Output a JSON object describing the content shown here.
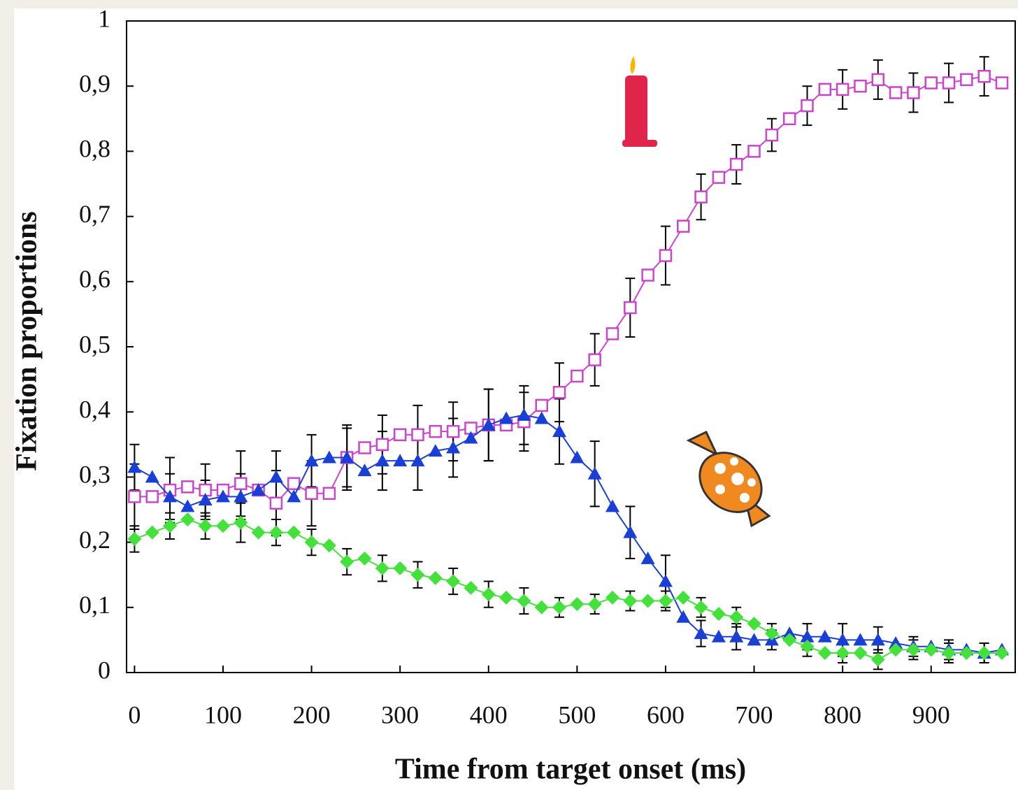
{
  "chart_data": {
    "type": "line",
    "x_label": "Time from target onset (ms)",
    "y_label": "Fixation proportions",
    "x": [
      0,
      20,
      40,
      60,
      80,
      100,
      120,
      140,
      160,
      180,
      200,
      220,
      240,
      260,
      280,
      300,
      320,
      340,
      360,
      380,
      400,
      420,
      440,
      460,
      480,
      500,
      520,
      540,
      560,
      580,
      600,
      620,
      640,
      660,
      680,
      700,
      720,
      740,
      760,
      780,
      800,
      820,
      840,
      860,
      880,
      900,
      920,
      940,
      960,
      980
    ],
    "series": [
      {
        "color": "#cc44cc",
        "marker": "square",
        "values": [
          0.27,
          0.27,
          0.28,
          0.285,
          0.28,
          0.28,
          0.29,
          0.28,
          0.26,
          0.29,
          0.275,
          0.275,
          0.33,
          0.345,
          0.35,
          0.365,
          0.365,
          0.37,
          0.37,
          0.375,
          0.38,
          0.38,
          0.385,
          0.41,
          0.43,
          0.455,
          0.48,
          0.52,
          0.56,
          0.61,
          0.64,
          0.685,
          0.73,
          0.76,
          0.78,
          0.8,
          0.825,
          0.85,
          0.87,
          0.895,
          0.895,
          0.9,
          0.91,
          0.89,
          0.89,
          0.905,
          0.905,
          0.91,
          0.915,
          0.905
        ],
        "errors": [
          0.05,
          null,
          0.05,
          null,
          0.04,
          null,
          0.05,
          null,
          0.05,
          null,
          0.05,
          null,
          0.05,
          null,
          0.045,
          null,
          0.045,
          null,
          0.045,
          null,
          0.055,
          null,
          0.045,
          null,
          0.045,
          null,
          0.04,
          null,
          0.045,
          null,
          0.045,
          null,
          0.035,
          null,
          0.03,
          null,
          0.025,
          null,
          0.03,
          null,
          0.03,
          null,
          0.03,
          null,
          0.03,
          null,
          0.03,
          null,
          0.03,
          null
        ]
      },
      {
        "color": "#1a3fd6",
        "marker": "triangle",
        "values": [
          0.315,
          0.3,
          0.27,
          0.255,
          0.265,
          0.27,
          0.27,
          0.28,
          0.3,
          0.27,
          0.325,
          0.33,
          0.33,
          0.31,
          0.325,
          0.325,
          0.325,
          0.34,
          0.345,
          0.36,
          0.38,
          0.39,
          0.395,
          0.39,
          0.37,
          0.33,
          0.305,
          0.255,
          0.215,
          0.175,
          0.14,
          0.085,
          0.06,
          0.055,
          0.055,
          0.05,
          0.05,
          0.06,
          0.055,
          0.055,
          0.05,
          0.05,
          0.05,
          0.045,
          0.04,
          0.04,
          0.035,
          0.035,
          0.03,
          0.035
        ],
        "errors": [
          0.035,
          null,
          0.035,
          null,
          0.03,
          null,
          0.035,
          null,
          0.04,
          null,
          0.04,
          null,
          0.045,
          null,
          0.045,
          null,
          0.045,
          null,
          0.045,
          null,
          0.055,
          null,
          0.045,
          null,
          0.05,
          null,
          0.05,
          null,
          0.04,
          null,
          0.04,
          null,
          0.02,
          null,
          0.02,
          null,
          0.015,
          null,
          0.02,
          null,
          0.025,
          null,
          0.02,
          null,
          0.015,
          null,
          0.015,
          null,
          0.015,
          null
        ]
      },
      {
        "color": "#44e03c",
        "marker": "diamond",
        "values": [
          0.205,
          0.215,
          0.225,
          0.235,
          0.225,
          0.225,
          0.23,
          0.215,
          0.215,
          0.215,
          0.2,
          0.195,
          0.17,
          0.175,
          0.16,
          0.16,
          0.15,
          0.145,
          0.14,
          0.13,
          0.12,
          0.115,
          0.11,
          0.1,
          0.1,
          0.105,
          0.105,
          0.115,
          0.11,
          0.11,
          0.11,
          0.115,
          0.1,
          0.09,
          0.085,
          0.075,
          0.06,
          0.05,
          0.04,
          0.03,
          0.03,
          0.03,
          0.02,
          0.035,
          0.035,
          0.035,
          0.03,
          0.03,
          0.03,
          0.03
        ],
        "errors": [
          0.02,
          null,
          0.02,
          null,
          0.02,
          null,
          0.03,
          null,
          0.02,
          null,
          0.02,
          null,
          0.02,
          null,
          0.02,
          null,
          0.02,
          null,
          0.02,
          null,
          0.02,
          null,
          0.02,
          null,
          0.015,
          null,
          0.015,
          null,
          0.015,
          null,
          0.015,
          null,
          0.015,
          null,
          0.015,
          null,
          0.015,
          null,
          0.015,
          null,
          0.015,
          null,
          0.015,
          null,
          0.015,
          null,
          0.015,
          null,
          0.015,
          null
        ]
      }
    ],
    "xlim": [
      -9,
      995
    ],
    "ylim": [
      0,
      1
    ],
    "xticks": [
      0,
      100,
      200,
      300,
      400,
      500,
      600,
      700,
      800,
      900
    ],
    "yticks": [
      0,
      {
        "value": 0.1,
        "label": "0,1"
      },
      {
        "value": 0.2,
        "label": "0,2"
      },
      {
        "value": 0.3,
        "label": "0,3"
      },
      {
        "value": 0.4,
        "label": "0,4"
      },
      {
        "value": 0.5,
        "label": "0,5"
      },
      {
        "value": 0.6,
        "label": "0,6"
      },
      {
        "value": 0.7,
        "label": "0,7"
      },
      {
        "value": 0.8,
        "label": "0,8"
      },
      {
        "value": 0.9,
        "label": "0,9"
      },
      1
    ]
  }
}
